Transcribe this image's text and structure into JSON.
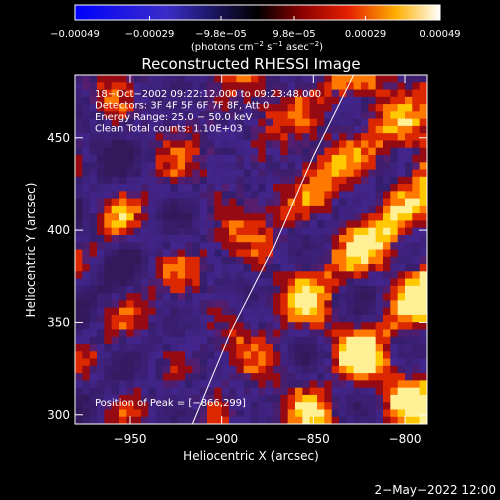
{
  "chart_data": {
    "type": "heatmap",
    "title": "Reconstructed RHESSI Image",
    "xlabel": "Heliocentric X (arcsec)",
    "ylabel": "Heliocentric Y (arcsec)",
    "xlim": [
      -980,
      -788
    ],
    "ylim": [
      295,
      484
    ],
    "xticks": [
      -950,
      -900,
      -850,
      -800
    ],
    "xtick_labels": [
      "−950",
      "−900",
      "−850",
      "−800"
    ],
    "yticks": [
      300,
      350,
      400,
      450
    ],
    "ytick_labels": [
      "300",
      "350",
      "400",
      "450"
    ],
    "colorbar": {
      "range": [
        -0.00049,
        0.00049
      ],
      "ticks": [
        -0.00049,
        -0.00029,
        -9.8e-05,
        9.8e-05,
        0.00029,
        0.00049
      ],
      "tick_labels": [
        "−0.00049",
        "−0.00029",
        "−9.8e−05",
        "9.8e−05",
        "0.00029",
        "0.00049"
      ],
      "unit_label_prefix": "(photons cm",
      "unit_label_sup1": "−2",
      "unit_label_mid1": " s",
      "unit_label_sup2": "−1",
      "unit_label_mid2": " asec",
      "unit_label_sup3": "−2",
      "unit_label_suffix": ")"
    },
    "annotations": [
      "18−Oct−2002 09:22:12.000 to 09:23:48.000",
      "Detectors: 3F 4F 5F 6F 7F 8F, Att 0",
      "Energy Range: 25.0 − 50.0 keV",
      "Clean     Total counts: 1.10E+03"
    ],
    "peak_label": "Position of Peak = [−866,299]",
    "peak_position": [
      -866,
      299
    ],
    "limb_curve": [
      [
        -916,
        295
      ],
      [
        -895,
        345
      ],
      [
        -872,
        390
      ],
      [
        -850,
        440
      ],
      [
        -828,
        484
      ]
    ],
    "grid": false,
    "legend": "colorbar-top"
  },
  "footer": {
    "timestamp": "2−May−2022 12:00"
  }
}
